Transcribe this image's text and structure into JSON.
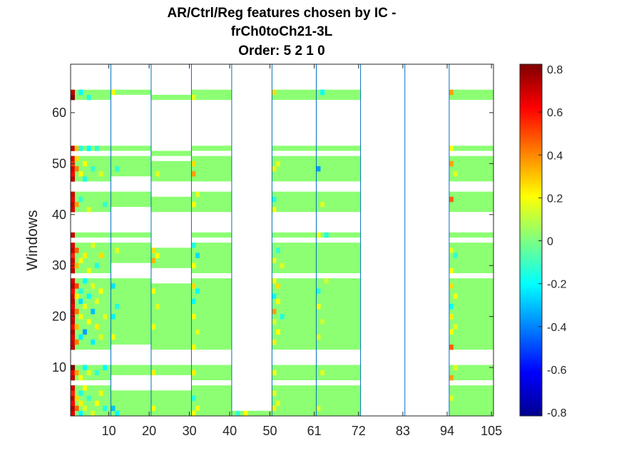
{
  "chart_data": {
    "type": "heatmap",
    "title_lines": [
      "AR/Ctrl/Reg features chosen by IC -",
      "frCh0toCh21-3L",
      "Order: 5 2 1 0"
    ],
    "xlabel": "",
    "ylabel": "Windows",
    "xlim": [
      0.5,
      105.5
    ],
    "ylim": [
      0.5,
      69.5
    ],
    "x_ticks": [
      10,
      20,
      30,
      40,
      50,
      61,
      72,
      83,
      94,
      105
    ],
    "y_ticks": [
      10,
      20,
      30,
      40,
      50,
      60
    ],
    "group_boundaries": [
      10,
      20,
      30,
      40,
      50,
      61,
      72,
      83,
      94
    ],
    "colormap": "jet",
    "clim": [
      -0.8,
      0.8
    ],
    "colorbar_ticks": [
      "0.8",
      "0.6",
      "0.4",
      "0.2",
      "0",
      "-0.2",
      "-0.4",
      "-0.6",
      "-0.8"
    ],
    "background_value": 0.02,
    "row_bands": [
      {
        "group_x": [
          1,
          10
        ],
        "rows": [
          [
            1,
            6
          ],
          [
            8,
            10
          ],
          [
            14,
            27
          ],
          [
            29,
            34
          ],
          [
            36,
            36
          ],
          [
            41,
            44
          ],
          [
            47,
            51
          ],
          [
            53,
            53
          ],
          [
            63,
            64
          ]
        ]
      },
      {
        "group_x": [
          11,
          20
        ],
        "rows": [
          [
            1,
            5
          ],
          [
            9,
            10
          ],
          [
            15,
            27
          ],
          [
            31,
            34
          ],
          [
            36,
            36
          ],
          [
            42,
            44
          ],
          [
            48,
            51
          ],
          [
            53,
            53
          ],
          [
            64,
            64
          ]
        ]
      },
      {
        "group_x": [
          21,
          30
        ],
        "rows": [
          [
            1,
            5
          ],
          [
            9,
            10
          ],
          [
            14,
            26
          ],
          [
            30,
            33
          ],
          [
            41,
            43
          ],
          [
            47,
            50
          ],
          [
            52,
            52
          ],
          [
            63,
            63
          ]
        ]
      },
      {
        "group_x": [
          31,
          40
        ],
        "rows": [
          [
            1,
            6
          ],
          [
            8,
            10
          ],
          [
            14,
            27
          ],
          [
            29,
            34
          ],
          [
            36,
            36
          ],
          [
            41,
            44
          ],
          [
            47,
            51
          ],
          [
            53,
            53
          ],
          [
            63,
            64
          ]
        ]
      },
      {
        "group_x": [
          41,
          50
        ],
        "rows": [
          [
            1,
            1
          ]
        ]
      },
      {
        "group_x": [
          51,
          61
        ],
        "rows": [
          [
            1,
            6
          ],
          [
            8,
            10
          ],
          [
            14,
            27
          ],
          [
            29,
            34
          ],
          [
            36,
            36
          ],
          [
            41,
            44
          ],
          [
            47,
            51
          ],
          [
            53,
            53
          ],
          [
            63,
            64
          ]
        ]
      },
      {
        "group_x": [
          62,
          72
        ],
        "rows": [
          [
            1,
            6
          ],
          [
            8,
            10
          ],
          [
            14,
            27
          ],
          [
            29,
            34
          ],
          [
            36,
            36
          ],
          [
            41,
            44
          ],
          [
            47,
            51
          ],
          [
            53,
            53
          ],
          [
            63,
            64
          ]
        ]
      },
      {
        "group_x": [
          95,
          105
        ],
        "rows": [
          [
            1,
            6
          ],
          [
            8,
            10
          ],
          [
            14,
            27
          ],
          [
            29,
            34
          ],
          [
            36,
            36
          ],
          [
            41,
            44
          ],
          [
            47,
            51
          ],
          [
            53,
            53
          ],
          [
            63,
            64
          ]
        ]
      }
    ],
    "highlight_cells": [
      {
        "x": 1,
        "y": 1,
        "v": 0.65
      },
      {
        "x": 1,
        "y": 2,
        "v": 0.72
      },
      {
        "x": 1,
        "y": 3,
        "v": 0.6
      },
      {
        "x": 1,
        "y": 4,
        "v": 0.7
      },
      {
        "x": 1,
        "y": 5,
        "v": 0.55
      },
      {
        "x": 1,
        "y": 6,
        "v": 0.68
      },
      {
        "x": 1,
        "y": 8,
        "v": 0.7
      },
      {
        "x": 1,
        "y": 9,
        "v": 0.62
      },
      {
        "x": 1,
        "y": 10,
        "v": 0.8
      },
      {
        "x": 1,
        "y": 14,
        "v": 0.7
      },
      {
        "x": 1,
        "y": 15,
        "v": 0.68
      },
      {
        "x": 1,
        "y": 16,
        "v": 0.65
      },
      {
        "x": 1,
        "y": 17,
        "v": 0.72
      },
      {
        "x": 1,
        "y": 18,
        "v": 0.6
      },
      {
        "x": 1,
        "y": 19,
        "v": 0.7
      },
      {
        "x": 1,
        "y": 20,
        "v": 0.66
      },
      {
        "x": 1,
        "y": 21,
        "v": 0.7
      },
      {
        "x": 1,
        "y": 22,
        "v": 0.64
      },
      {
        "x": 1,
        "y": 23,
        "v": 0.7
      },
      {
        "x": 1,
        "y": 24,
        "v": 0.68
      },
      {
        "x": 1,
        "y": 25,
        "v": 0.6
      },
      {
        "x": 1,
        "y": 26,
        "v": 0.72
      },
      {
        "x": 1,
        "y": 27,
        "v": 0.66
      },
      {
        "x": 1,
        "y": 29,
        "v": 0.7
      },
      {
        "x": 1,
        "y": 30,
        "v": 0.62
      },
      {
        "x": 1,
        "y": 31,
        "v": 0.68
      },
      {
        "x": 1,
        "y": 32,
        "v": 0.55
      },
      {
        "x": 1,
        "y": 33,
        "v": 0.7
      },
      {
        "x": 1,
        "y": 34,
        "v": 0.66
      },
      {
        "x": 1,
        "y": 36,
        "v": 0.7
      },
      {
        "x": 1,
        "y": 41,
        "v": 0.66
      },
      {
        "x": 1,
        "y": 42,
        "v": 0.7
      },
      {
        "x": 1,
        "y": 43,
        "v": 0.64
      },
      {
        "x": 1,
        "y": 44,
        "v": 0.68
      },
      {
        "x": 1,
        "y": 47,
        "v": 0.7
      },
      {
        "x": 1,
        "y": 48,
        "v": 0.6
      },
      {
        "x": 1,
        "y": 49,
        "v": 0.68
      },
      {
        "x": 1,
        "y": 50,
        "v": 0.52
      },
      {
        "x": 1,
        "y": 51,
        "v": 0.66
      },
      {
        "x": 1,
        "y": 53,
        "v": 0.7
      },
      {
        "x": 1,
        "y": 63,
        "v": 0.8
      },
      {
        "x": 1,
        "y": 64,
        "v": 0.7
      },
      {
        "x": 2,
        "y": 2,
        "v": 0.45
      },
      {
        "x": 2,
        "y": 4,
        "v": 0.25
      },
      {
        "x": 2,
        "y": 9,
        "v": 0.35
      },
      {
        "x": 2,
        "y": 15,
        "v": 0.4
      },
      {
        "x": 2,
        "y": 18,
        "v": 0.3
      },
      {
        "x": 2,
        "y": 21,
        "v": 0.42
      },
      {
        "x": 2,
        "y": 24,
        "v": 0.22
      },
      {
        "x": 2,
        "y": 26,
        "v": 0.5
      },
      {
        "x": 2,
        "y": 30,
        "v": 0.3
      },
      {
        "x": 2,
        "y": 33,
        "v": 0.45
      },
      {
        "x": 2,
        "y": 42,
        "v": 0.35
      },
      {
        "x": 2,
        "y": 49,
        "v": 0.4
      },
      {
        "x": 2,
        "y": 51,
        "v": 0.25
      },
      {
        "x": 2,
        "y": 53,
        "v": 0.3
      },
      {
        "x": 3,
        "y": 1,
        "v": -0.2
      },
      {
        "x": 3,
        "y": 3,
        "v": 0.22
      },
      {
        "x": 3,
        "y": 5,
        "v": -0.15
      },
      {
        "x": 3,
        "y": 8,
        "v": 0.2
      },
      {
        "x": 3,
        "y": 16,
        "v": -0.22
      },
      {
        "x": 3,
        "y": 20,
        "v": 0.18
      },
      {
        "x": 3,
        "y": 23,
        "v": -0.25
      },
      {
        "x": 3,
        "y": 25,
        "v": -0.15
      },
      {
        "x": 3,
        "y": 31,
        "v": 0.2
      },
      {
        "x": 3,
        "y": 43,
        "v": -0.12
      },
      {
        "x": 3,
        "y": 48,
        "v": 0.2
      },
      {
        "x": 3,
        "y": 53,
        "v": -0.15
      },
      {
        "x": 3,
        "y": 64,
        "v": -0.2
      },
      {
        "x": 4,
        "y": 2,
        "v": 0.15
      },
      {
        "x": 4,
        "y": 6,
        "v": 0.2
      },
      {
        "x": 4,
        "y": 10,
        "v": -0.2
      },
      {
        "x": 4,
        "y": 17,
        "v": -0.35
      },
      {
        "x": 4,
        "y": 22,
        "v": 0.18
      },
      {
        "x": 4,
        "y": 27,
        "v": -0.2
      },
      {
        "x": 4,
        "y": 32,
        "v": 0.22
      },
      {
        "x": 4,
        "y": 47,
        "v": -0.15
      },
      {
        "x": 4,
        "y": 50,
        "v": 0.2
      },
      {
        "x": 5,
        "y": 4,
        "v": -0.12
      },
      {
        "x": 5,
        "y": 9,
        "v": 0.15
      },
      {
        "x": 5,
        "y": 19,
        "v": 0.2
      },
      {
        "x": 5,
        "y": 24,
        "v": -0.2
      },
      {
        "x": 5,
        "y": 29,
        "v": 0.18
      },
      {
        "x": 5,
        "y": 41,
        "v": 0.15
      },
      {
        "x": 5,
        "y": 53,
        "v": -0.2
      },
      {
        "x": 5,
        "y": 63,
        "v": -0.15
      },
      {
        "x": 6,
        "y": 1,
        "v": 0.15
      },
      {
        "x": 6,
        "y": 15,
        "v": -0.22
      },
      {
        "x": 6,
        "y": 21,
        "v": -0.3
      },
      {
        "x": 6,
        "y": 26,
        "v": 0.15
      },
      {
        "x": 6,
        "y": 34,
        "v": 0.15
      },
      {
        "x": 6,
        "y": 49,
        "v": -0.12
      },
      {
        "x": 7,
        "y": 3,
        "v": 0.2
      },
      {
        "x": 7,
        "y": 9,
        "v": -0.12
      },
      {
        "x": 7,
        "y": 18,
        "v": 0.22
      },
      {
        "x": 7,
        "y": 23,
        "v": 0.15
      },
      {
        "x": 7,
        "y": 30,
        "v": -0.15
      },
      {
        "x": 7,
        "y": 53,
        "v": -0.12
      },
      {
        "x": 8,
        "y": 5,
        "v": 0.18
      },
      {
        "x": 8,
        "y": 16,
        "v": 0.15
      },
      {
        "x": 8,
        "y": 25,
        "v": 0.2
      },
      {
        "x": 8,
        "y": 32,
        "v": 0.25
      },
      {
        "x": 8,
        "y": 48,
        "v": 0.15
      },
      {
        "x": 9,
        "y": 2,
        "v": -0.15
      },
      {
        "x": 9,
        "y": 10,
        "v": -0.2
      },
      {
        "x": 9,
        "y": 20,
        "v": 0.15
      },
      {
        "x": 9,
        "y": 42,
        "v": -0.12
      },
      {
        "x": 11,
        "y": 2,
        "v": -0.3
      },
      {
        "x": 11,
        "y": 16,
        "v": 0.2
      },
      {
        "x": 11,
        "y": 20,
        "v": -0.22
      },
      {
        "x": 11,
        "y": 26,
        "v": -0.25
      },
      {
        "x": 11,
        "y": 64,
        "v": 0.2
      },
      {
        "x": 12,
        "y": 1,
        "v": -0.2
      },
      {
        "x": 12,
        "y": 22,
        "v": -0.15
      },
      {
        "x": 12,
        "y": 33,
        "v": 0.15
      },
      {
        "x": 12,
        "y": 49,
        "v": -0.12
      },
      {
        "x": 21,
        "y": 2,
        "v": 0.2
      },
      {
        "x": 21,
        "y": 9,
        "v": 0.22
      },
      {
        "x": 21,
        "y": 18,
        "v": 0.18
      },
      {
        "x": 21,
        "y": 25,
        "v": 0.2
      },
      {
        "x": 21,
        "y": 31,
        "v": 0.32
      },
      {
        "x": 21,
        "y": 33,
        "v": 0.25
      },
      {
        "x": 22,
        "y": 22,
        "v": 0.15
      },
      {
        "x": 22,
        "y": 32,
        "v": 0.2
      },
      {
        "x": 22,
        "y": 48,
        "v": 0.15
      },
      {
        "x": 31,
        "y": 1,
        "v": 0.2
      },
      {
        "x": 31,
        "y": 4,
        "v": -0.15
      },
      {
        "x": 31,
        "y": 9,
        "v": 0.22
      },
      {
        "x": 31,
        "y": 14,
        "v": 0.18
      },
      {
        "x": 31,
        "y": 20,
        "v": 0.2
      },
      {
        "x": 31,
        "y": 23,
        "v": -0.2
      },
      {
        "x": 31,
        "y": 26,
        "v": 0.25
      },
      {
        "x": 31,
        "y": 30,
        "v": 0.2
      },
      {
        "x": 31,
        "y": 34,
        "v": -0.15
      },
      {
        "x": 31,
        "y": 42,
        "v": 0.2
      },
      {
        "x": 31,
        "y": 48,
        "v": 0.35
      },
      {
        "x": 31,
        "y": 50,
        "v": 0.25
      },
      {
        "x": 31,
        "y": 63,
        "v": 0.15
      },
      {
        "x": 32,
        "y": 2,
        "v": 0.18
      },
      {
        "x": 32,
        "y": 17,
        "v": 0.15
      },
      {
        "x": 32,
        "y": 25,
        "v": -0.2
      },
      {
        "x": 32,
        "y": 32,
        "v": -0.25
      },
      {
        "x": 32,
        "y": 44,
        "v": 0.15
      },
      {
        "x": 42,
        "y": 1,
        "v": -0.12
      },
      {
        "x": 44,
        "y": 1,
        "v": 0.2
      },
      {
        "x": 51,
        "y": 2,
        "v": 0.22
      },
      {
        "x": 51,
        "y": 5,
        "v": 0.18
      },
      {
        "x": 51,
        "y": 9,
        "v": 0.2
      },
      {
        "x": 51,
        "y": 15,
        "v": 0.22
      },
      {
        "x": 51,
        "y": 19,
        "v": 0.15
      },
      {
        "x": 51,
        "y": 21,
        "v": 0.35
      },
      {
        "x": 51,
        "y": 24,
        "v": -0.2
      },
      {
        "x": 51,
        "y": 27,
        "v": 0.2
      },
      {
        "x": 51,
        "y": 31,
        "v": 0.18
      },
      {
        "x": 51,
        "y": 41,
        "v": 0.2
      },
      {
        "x": 51,
        "y": 43,
        "v": -0.15
      },
      {
        "x": 51,
        "y": 49,
        "v": 0.22
      },
      {
        "x": 51,
        "y": 64,
        "v": 0.25
      },
      {
        "x": 52,
        "y": 3,
        "v": 0.15
      },
      {
        "x": 52,
        "y": 17,
        "v": 0.2
      },
      {
        "x": 52,
        "y": 23,
        "v": 0.18
      },
      {
        "x": 52,
        "y": 26,
        "v": 0.25
      },
      {
        "x": 52,
        "y": 33,
        "v": -0.12
      },
      {
        "x": 52,
        "y": 50,
        "v": 0.15
      },
      {
        "x": 53,
        "y": 20,
        "v": -0.15
      },
      {
        "x": 53,
        "y": 30,
        "v": 0.15
      },
      {
        "x": 62,
        "y": 2,
        "v": 0.15
      },
      {
        "x": 62,
        "y": 16,
        "v": 0.15
      },
      {
        "x": 62,
        "y": 22,
        "v": 0.2
      },
      {
        "x": 62,
        "y": 25,
        "v": -0.15
      },
      {
        "x": 62,
        "y": 36,
        "v": 0.18
      },
      {
        "x": 62,
        "y": 49,
        "v": -0.35
      },
      {
        "x": 63,
        "y": 9,
        "v": 0.15
      },
      {
        "x": 63,
        "y": 19,
        "v": 0.12
      },
      {
        "x": 63,
        "y": 42,
        "v": 0.15
      },
      {
        "x": 63,
        "y": 64,
        "v": -0.2
      },
      {
        "x": 64,
        "y": 27,
        "v": 0.12
      },
      {
        "x": 64,
        "y": 36,
        "v": -0.15
      },
      {
        "x": 95,
        "y": 4,
        "v": 0.15
      },
      {
        "x": 95,
        "y": 8,
        "v": 0.35
      },
      {
        "x": 95,
        "y": 14,
        "v": 0.45
      },
      {
        "x": 95,
        "y": 17,
        "v": 0.2
      },
      {
        "x": 95,
        "y": 20,
        "v": 0.22
      },
      {
        "x": 95,
        "y": 22,
        "v": -0.2
      },
      {
        "x": 95,
        "y": 26,
        "v": 0.25
      },
      {
        "x": 95,
        "y": 29,
        "v": 0.2
      },
      {
        "x": 95,
        "y": 33,
        "v": 0.15
      },
      {
        "x": 95,
        "y": 43,
        "v": 0.45
      },
      {
        "x": 95,
        "y": 50,
        "v": 0.35
      },
      {
        "x": 95,
        "y": 53,
        "v": 0.2
      },
      {
        "x": 95,
        "y": 64,
        "v": 0.35
      },
      {
        "x": 96,
        "y": 10,
        "v": 0.15
      },
      {
        "x": 96,
        "y": 18,
        "v": 0.15
      },
      {
        "x": 96,
        "y": 24,
        "v": 0.18
      },
      {
        "x": 96,
        "y": 32,
        "v": -0.12
      },
      {
        "x": 96,
        "y": 48,
        "v": 0.15
      }
    ]
  }
}
